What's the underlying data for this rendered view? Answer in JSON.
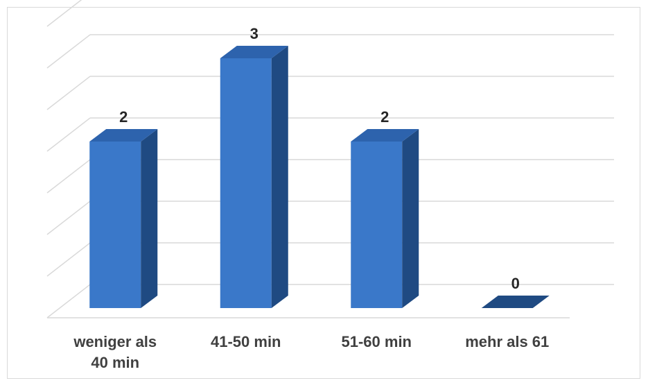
{
  "chart_data": {
    "type": "bar",
    "style": "3d-column",
    "categories": [
      "weniger als\n40 min",
      "41-50 min",
      "51-60 min",
      "mehr als 61"
    ],
    "values": [
      2,
      3,
      2,
      0
    ],
    "ylim": [
      0,
      3.5
    ],
    "grid": true,
    "legend": "none",
    "colors": {
      "front": "#3a78c9",
      "side": "#1f4a82",
      "top": "#2d63ad",
      "grid": "#d9d9d9",
      "label": "#404040"
    }
  }
}
